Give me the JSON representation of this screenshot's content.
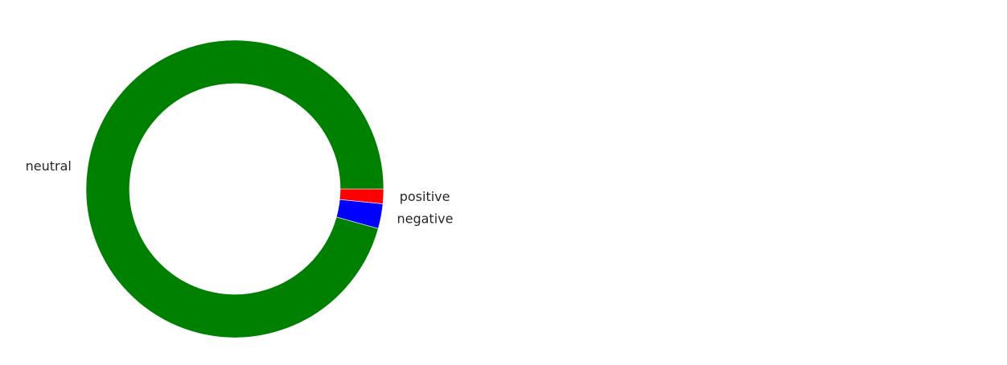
{
  "chart_data": {
    "type": "pie",
    "style": "donut",
    "title": "",
    "slices": [
      {
        "label": "positive",
        "value": 1.6,
        "color": "#ff0000"
      },
      {
        "label": "negative",
        "value": 2.7,
        "color": "#0000ff"
      },
      {
        "label": "neutral",
        "value": 95.7,
        "color": "#008000"
      }
    ],
    "start_angle_deg": 0,
    "direction": "clockwise",
    "legend": "none"
  }
}
